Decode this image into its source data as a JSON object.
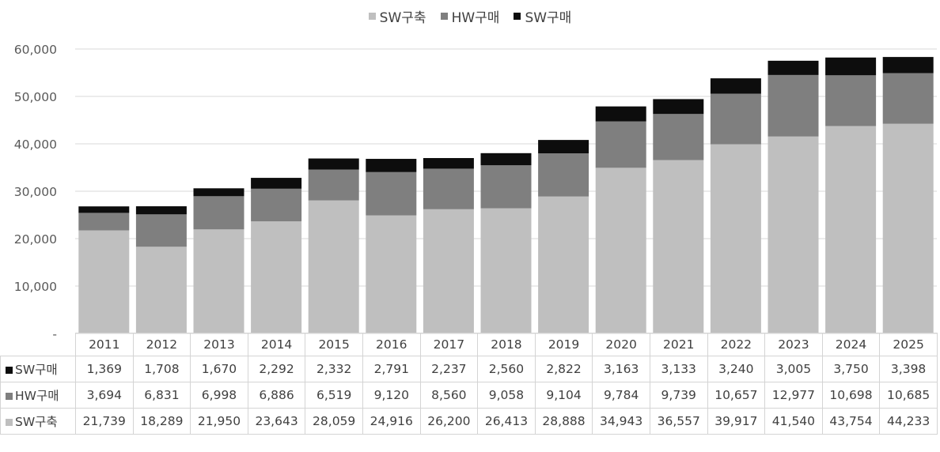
{
  "chart_data": {
    "type": "bar",
    "stacked": true,
    "categories": [
      "2011",
      "2012",
      "2013",
      "2014",
      "2015",
      "2016",
      "2017",
      "2018",
      "2019",
      "2020",
      "2021",
      "2022",
      "2023",
      "2024",
      "2025"
    ],
    "series": [
      {
        "name": "SW구축",
        "color": "#bfbfbf",
        "values": [
          21739,
          18289,
          21950,
          23643,
          28059,
          24916,
          26200,
          26413,
          28888,
          34943,
          36557,
          39917,
          41540,
          43754,
          44233
        ],
        "labels": [
          "21,739",
          "18,289",
          "21,950",
          "23,643",
          "28,059",
          "24,916",
          "26,200",
          "26,413",
          "28,888",
          "34,943",
          "36,557",
          "39,917",
          "41,540",
          "43,754",
          "44,233"
        ]
      },
      {
        "name": "HW구매",
        "color": "#7f7f7f",
        "values": [
          3694,
          6831,
          6998,
          6886,
          6519,
          9120,
          8560,
          9058,
          9104,
          9784,
          9739,
          10657,
          12977,
          10698,
          10685
        ],
        "labels": [
          "3,694",
          "6,831",
          "6,998",
          "6,886",
          "6,519",
          "9,120",
          "8,560",
          "9,058",
          "9,104",
          "9,784",
          "9,739",
          "10,657",
          "12,977",
          "10,698",
          "10,685"
        ]
      },
      {
        "name": "SW구매",
        "color": "#0d0d0d",
        "values": [
          1369,
          1708,
          1670,
          2292,
          2332,
          2791,
          2237,
          2560,
          2822,
          3163,
          3133,
          3240,
          3005,
          3750,
          3398
        ],
        "labels": [
          "1,369",
          "1,708",
          "1,670",
          "2,292",
          "2,332",
          "2,791",
          "2,237",
          "2,560",
          "2,822",
          "3,163",
          "3,133",
          "3,240",
          "3,005",
          "3,750",
          "3,398"
        ]
      }
    ],
    "ylim": [
      0,
      60000
    ],
    "yticks": [
      0,
      10000,
      20000,
      30000,
      40000,
      50000,
      60000
    ],
    "ytick_labels": [
      "-",
      "10,000",
      "20,000",
      "30,000",
      "40,000",
      "50,000",
      "60,000"
    ],
    "grid": true,
    "legend_position": "top-center",
    "legend_order": [
      "SW구축",
      "HW구매",
      "SW구매"
    ],
    "table_row_order": [
      "SW구매",
      "HW구매",
      "SW구축"
    ],
    "title": "",
    "xlabel": "",
    "ylabel": ""
  }
}
